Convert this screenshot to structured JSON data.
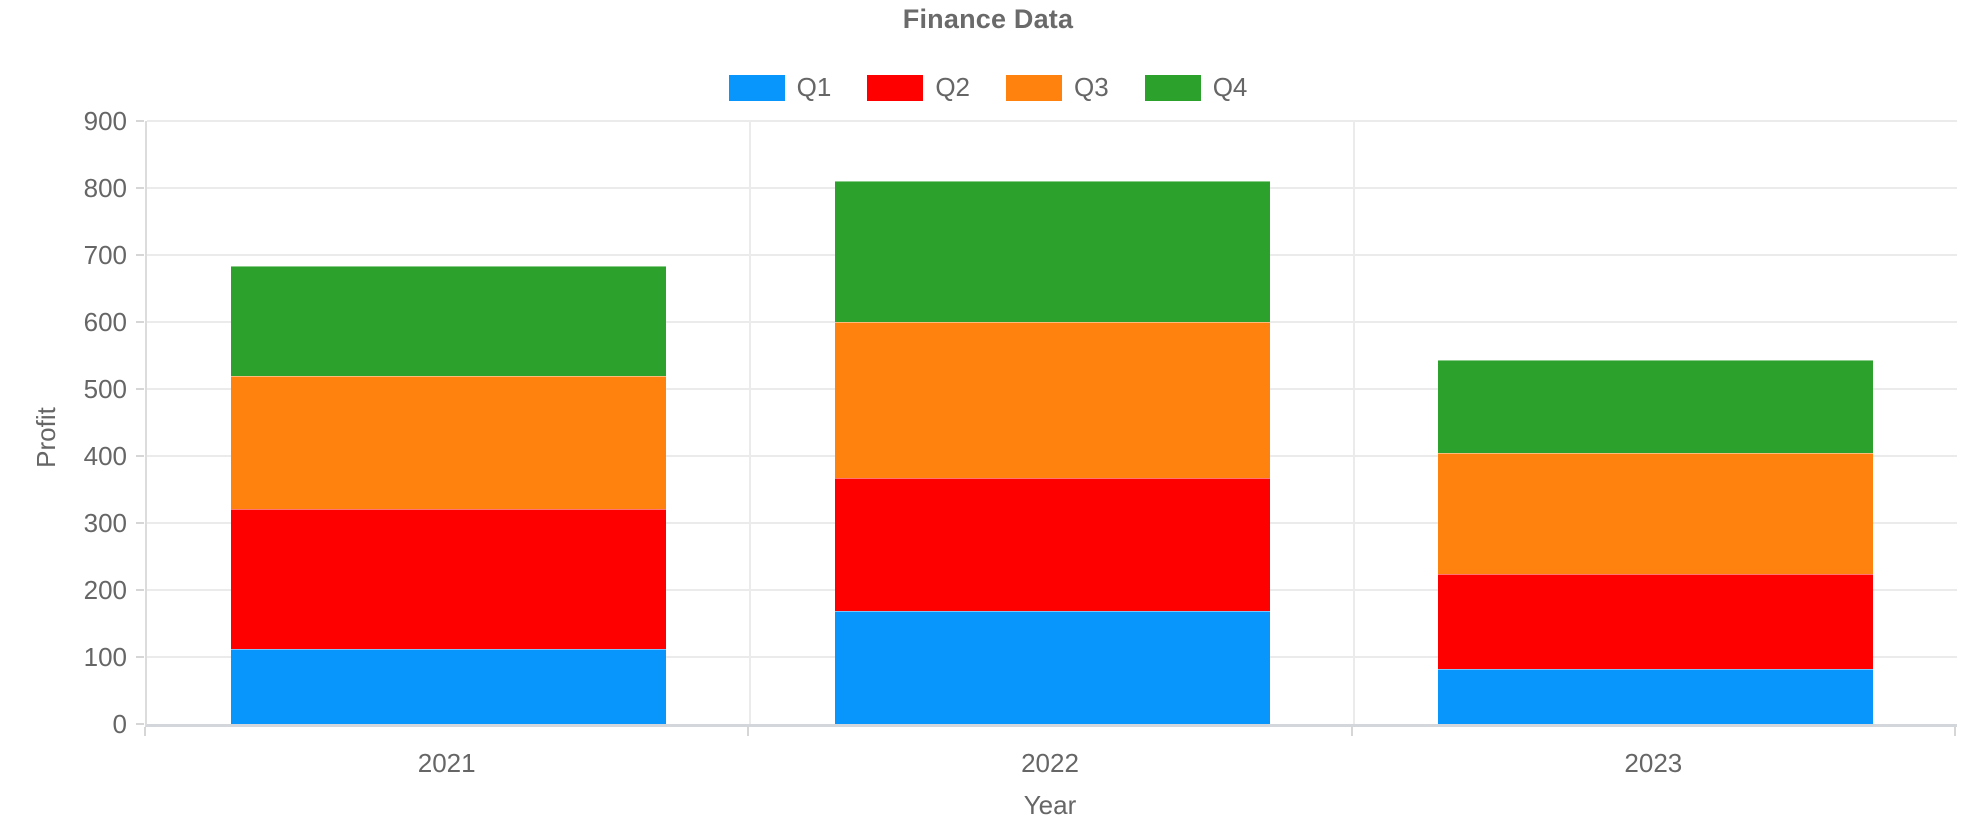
{
  "title": "Finance Data",
  "legend": {
    "position": "top",
    "items": [
      {
        "label": "Q1",
        "color": "#0996fc"
      },
      {
        "label": "Q2",
        "color": "#ff0000"
      },
      {
        "label": "Q3",
        "color": "#ff810e"
      },
      {
        "label": "Q4",
        "color": "#2ca22c"
      }
    ]
  },
  "chart_data": {
    "type": "bar",
    "stacked": true,
    "title": "Finance Data",
    "xlabel": "Year",
    "ylabel": "Profit",
    "categories": [
      "2021",
      "2022",
      "2023"
    ],
    "series": [
      {
        "name": "Q1",
        "color": "#0996fc",
        "values": [
          112,
          168,
          82
        ]
      },
      {
        "name": "Q2",
        "color": "#ff0000",
        "values": [
          209,
          199,
          142
        ]
      },
      {
        "name": "Q3",
        "color": "#ff810e",
        "values": [
          198,
          233,
          180
        ]
      },
      {
        "name": "Q4",
        "color": "#2ca22c",
        "values": [
          164,
          210,
          140
        ]
      }
    ],
    "stack_totals": [
      683,
      810,
      544
    ],
    "ylim": [
      0,
      900
    ],
    "ytick_step": 100,
    "ytick_labels": [
      "0",
      "100",
      "200",
      "300",
      "400",
      "500",
      "600",
      "700",
      "800",
      "900"
    ],
    "grid": true,
    "legend_position": "top",
    "colors": {
      "tick_text": "#666666",
      "title_text": "#6a6a6a",
      "gridline": "#ebebeb",
      "axis_line": "#d3d7dc"
    }
  }
}
